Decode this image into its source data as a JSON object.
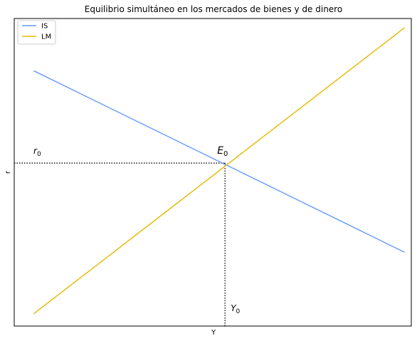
{
  "chart_data": {
    "type": "line",
    "title": "Equilibrio simultáneo en los mercados de bienes y de dinero",
    "xlabel": "Y",
    "ylabel": "r",
    "grid": false,
    "legend_position": "top-left",
    "xlim": [
      0,
      100
    ],
    "ylim": [
      0,
      100
    ],
    "series": [
      {
        "name": "IS",
        "color": "#6699ff",
        "x": [
          5,
          100
        ],
        "y": [
          83,
          24
        ]
      },
      {
        "name": "LM",
        "color": "#e6b800",
        "x": [
          5,
          100
        ],
        "y": [
          4,
          97
        ]
      }
    ],
    "equilibrium": {
      "x": 54,
      "y": 53
    },
    "annotations": {
      "equilibrium_base": "E",
      "equilibrium_sub": "0",
      "r_base": "r",
      "r_sub": "0",
      "y_base": "Y",
      "y_sub": "0"
    }
  }
}
